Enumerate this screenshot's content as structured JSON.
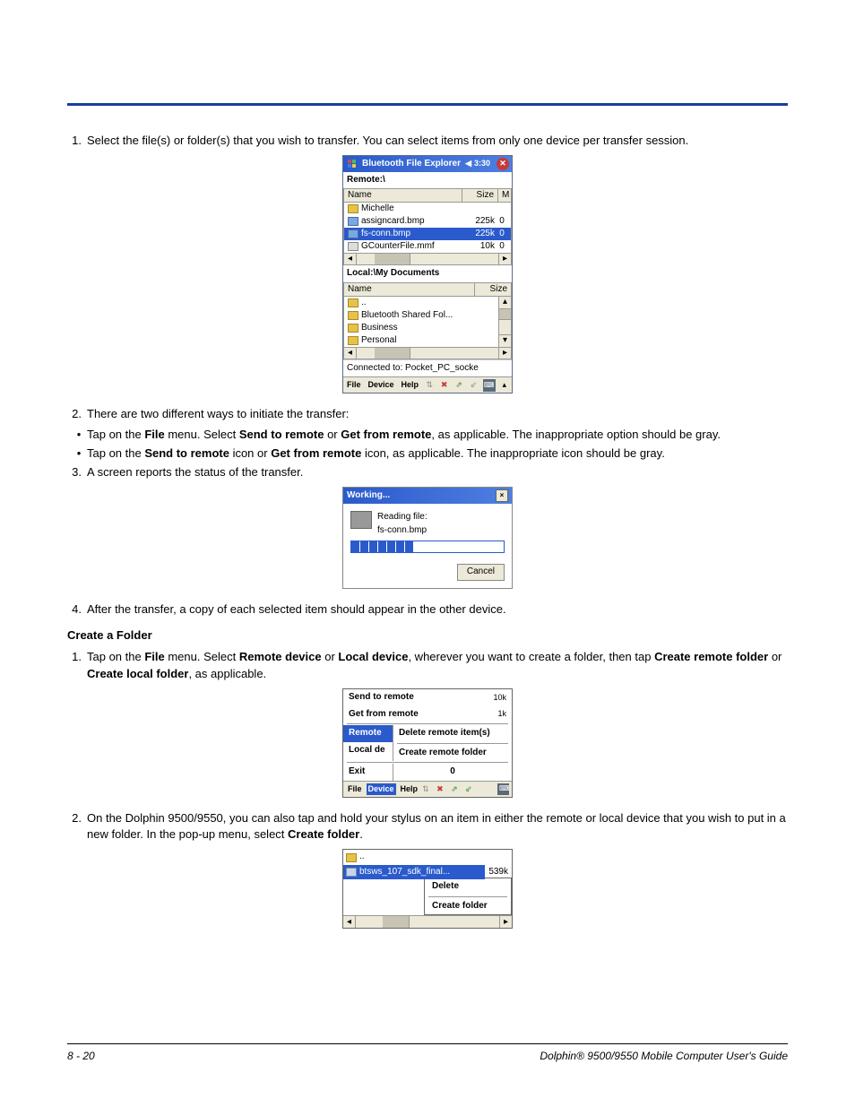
{
  "step1": "Select the file(s) or folder(s) that you wish to transfer. You can select items from only one device per transfer session.",
  "fig1": {
    "title": "Bluetooth File Explorer",
    "time": "3:30",
    "remote_label": "Remote:\\",
    "col_name": "Name",
    "col_size": "Size",
    "col_m": "M",
    "remote_items": [
      {
        "name": "Michelle",
        "size": "",
        "m": "",
        "type": "folder"
      },
      {
        "name": "assigncard.bmp",
        "size": "225k",
        "m": "0",
        "type": "bmp"
      },
      {
        "name": "fs-conn.bmp",
        "size": "225k",
        "m": "0",
        "type": "bmp",
        "sel": true
      },
      {
        "name": "GCounterFile.mmf",
        "size": "10k",
        "m": "0",
        "type": "file"
      }
    ],
    "local_label": "Local:\\My Documents",
    "local_items": [
      {
        "name": "..",
        "type": "folder"
      },
      {
        "name": "Bluetooth Shared Fol...",
        "type": "folder"
      },
      {
        "name": "Business",
        "type": "folder"
      },
      {
        "name": "Personal",
        "type": "folder"
      }
    ],
    "status": "Connected to: Pocket_PC_socke",
    "menu": [
      "File",
      "Device",
      "Help"
    ]
  },
  "step2_intro": "There are two different ways to initiate the transfer:",
  "step2_bullet1_a": "Tap on the ",
  "step2_bullet1_b": "File",
  "step2_bullet1_c": " menu. Select ",
  "step2_bullet1_d": "Send to remote",
  "step2_bullet1_e": " or ",
  "step2_bullet1_f": "Get from remote",
  "step2_bullet1_g": ", as applicable. The inappropriate option should be gray.",
  "step2_bullet2_a": "Tap on the ",
  "step2_bullet2_b": "Send to remote",
  "step2_bullet2_c": " icon or ",
  "step2_bullet2_d": "Get from remote",
  "step2_bullet2_e": " icon, as applicable. The inappropriate icon should be gray.",
  "step3": "A screen reports the status of the transfer.",
  "fig2": {
    "title": "Working...",
    "line1": "Reading file:",
    "line2": "fs-conn.bmp",
    "cancel": "Cancel",
    "progress_segments": 7
  },
  "step4": "After the transfer, a copy of each selected item should appear in the other device.",
  "createFolderHeading": "Create a Folder",
  "cf_step1_a": "Tap on the ",
  "cf_step1_b": "File",
  "cf_step1_c": " menu. Select ",
  "cf_step1_d": "Remote device",
  "cf_step1_e": " or ",
  "cf_step1_f": "Local device",
  "cf_step1_g": ", wherever you want to create a folder, then tap ",
  "cf_step1_h": "Create remote folder",
  "cf_step1_i": " or ",
  "cf_step1_j": "Create local folder",
  "cf_step1_k": ", as applicable.",
  "fig3": {
    "send": "Send to remote",
    "sendsz": "10k",
    "get": "Get from remote",
    "getsz": "1k",
    "remote": "Remote",
    "delri": "Delete remote item(s)",
    "localde": "Local de",
    "crf": "Create remote folder",
    "exit": "Exit",
    "zero": "0",
    "menu": [
      "File",
      "Device",
      "Help"
    ]
  },
  "cf_step2_a": "On the Dolphin 9500/9550, you can also tap and hold your stylus on an item in either the remote or local device that you wish to put in a new folder. In the pop-up menu, select ",
  "cf_step2_b": "Create folder",
  "cf_step2_c": ".",
  "fig4": {
    "parent": "..",
    "file": "btsws_107_sdk_final...",
    "size": "539k",
    "delete": "Delete",
    "createfolder": "Create folder"
  },
  "footer_left": "8 - 20",
  "footer_right": "Dolphin® 9500/9550 Mobile Computer User's Guide"
}
